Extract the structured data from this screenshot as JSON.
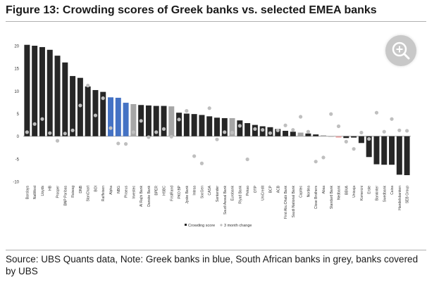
{
  "title": "Figure 13: Crowding scores of Greek banks vs. selected EMEA banks",
  "source": "Source: UBS Quants data, Note: Greek banks in blue, South African banks in grey, banks covered by UBS",
  "zoom_icon": "zoom-in-icon",
  "colors": {
    "dark": "#262626",
    "greek": "#4472c4",
    "southafrica": "#a6a6a6",
    "red": "#e8a0a0",
    "dot": "#bfbfbf"
  },
  "chart_data": {
    "type": "bar",
    "ylim": [
      -10,
      20
    ],
    "yticks": [
      "20",
      "15",
      "10",
      "5",
      "0",
      "-5",
      "-10"
    ],
    "grid": false,
    "legend_position": "bottom",
    "legend": [
      "Crowding score",
      "3 month change"
    ],
    "categories": [
      "Barclays",
      "NatWest",
      "Lloyds",
      "HB",
      "Prosper",
      "BNP Paribas",
      "Raiwag",
      "DNB",
      "StanChart",
      "BOI",
      "Raiffeisen",
      "Alpha",
      "NBG",
      "Piraeus",
      "Investec",
      "Al Rajhi Bank",
      "Danske Bank",
      "BPER",
      "HSBC",
      "FirstRand",
      "PKO BP",
      "Jyske Bank",
      "Intesa",
      "SocGen",
      "CASA",
      "Santander",
      "Saudi Awwal Bank",
      "Eurobank",
      "Riyad Bank",
      "Pekao",
      "OTP",
      "UniCredit",
      "BCP",
      "ACB",
      "First Abu Dhabi Bank",
      "Saudi National Bank",
      "Capitec",
      "Nordea",
      "Close Brothers",
      "Absa",
      "Standard Bank",
      "Nedbank",
      "BBVA",
      "Unicaja",
      "Komercni",
      "Erste",
      "Bankinter",
      "Swedbank",
      "Caixa",
      "Handelsbanken",
      "SEB Group"
    ],
    "groups": [
      "dark",
      "dark",
      "dark",
      "dark",
      "dark",
      "dark",
      "dark",
      "dark",
      "dark",
      "dark",
      "dark",
      "greek",
      "greek",
      "greek",
      "southafrica",
      "dark",
      "dark",
      "dark",
      "dark",
      "southafrica",
      "dark",
      "dark",
      "dark",
      "dark",
      "dark",
      "dark",
      "dark",
      "southafrica",
      "dark",
      "dark",
      "dark",
      "dark",
      "dark",
      "dark",
      "dark",
      "dark",
      "southafrica",
      "dark",
      "dark",
      "southafrica",
      "southafrica",
      "red",
      "dark",
      "dark",
      "dark",
      "dark",
      "dark",
      "dark",
      "dark",
      "dark",
      "dark"
    ],
    "series": [
      {
        "name": "Crowding score",
        "values": [
          20.2,
          20.0,
          19.7,
          19.1,
          17.8,
          16.3,
          13.3,
          12.9,
          11.0,
          10.2,
          9.8,
          8.6,
          8.5,
          7.4,
          7.1,
          6.9,
          6.8,
          6.7,
          6.7,
          6.6,
          5.2,
          5.0,
          4.9,
          4.7,
          4.4,
          4.1,
          4.0,
          4.0,
          3.5,
          2.9,
          2.5,
          2.2,
          2.0,
          1.6,
          1.2,
          1.0,
          0.8,
          0.6,
          0.4,
          0.2,
          -0.1,
          -0.3,
          -0.4,
          -0.3,
          -1.5,
          -4.6,
          -6.2,
          -6.3,
          -6.3,
          -8.5,
          -8.6
        ]
      },
      {
        "name": "3 month change",
        "values": [
          0.9,
          2.7,
          3.8,
          0.7,
          -1.0,
          0.6,
          1.3,
          6.8,
          11.2,
          4.6,
          8.4,
          1.8,
          -1.6,
          -1.7,
          0.9,
          3.4,
          -0.2,
          0.9,
          1.6,
          -0.1,
          3.7,
          5.6,
          -4.4,
          -6.0,
          6.2,
          -0.7,
          0.9,
          0.8,
          2.3,
          -5.1,
          1.6,
          1.4,
          0.7,
          1.3,
          2.4,
          1.4,
          4.3,
          1.0,
          -5.6,
          -4.7,
          4.9,
          2.2,
          -1.2,
          -2.8,
          0.8,
          -0.6,
          5.2,
          1.0,
          3.8,
          1.3,
          1.2
        ]
      }
    ]
  }
}
